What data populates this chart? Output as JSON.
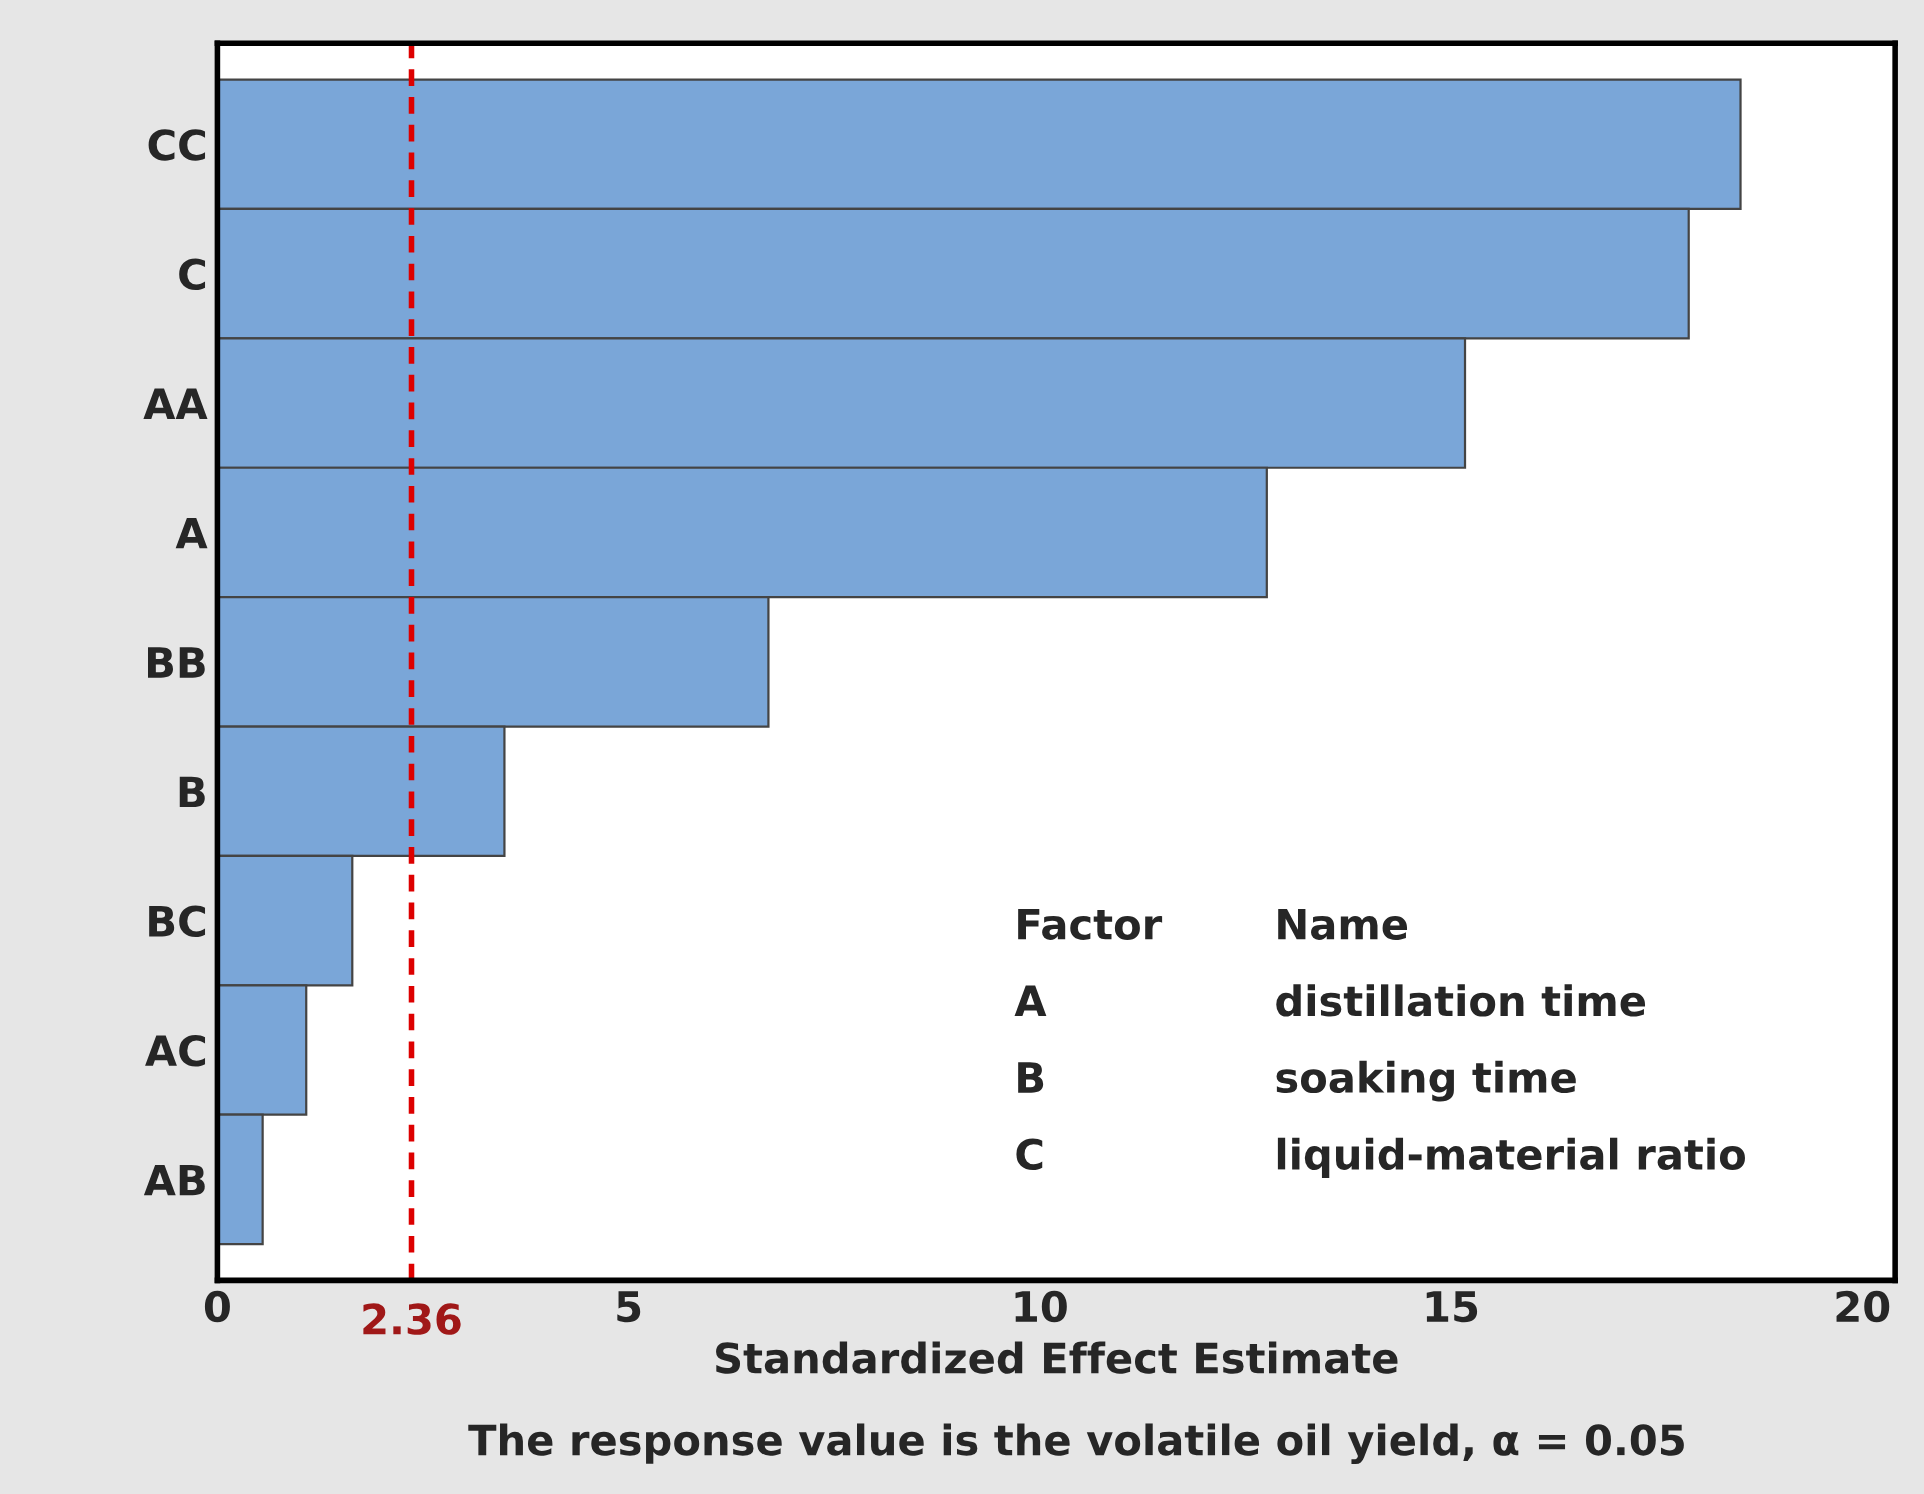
{
  "chart_data": {
    "type": "bar",
    "orientation": "horizontal",
    "categories": [
      "CC",
      "C",
      "AA",
      "A",
      "BB",
      "B",
      "BC",
      "AC",
      "AB"
    ],
    "values": [
      18.52,
      17.89,
      15.17,
      12.76,
      6.7,
      3.49,
      1.64,
      1.08,
      0.55
    ],
    "color": "#7aa6d8",
    "xlim": [
      0,
      20.4
    ],
    "xticks": [
      0,
      5,
      10,
      15,
      20
    ],
    "xlabel": "Standardized Effect Estimate",
    "ref_lines": [
      {
        "axis": "x",
        "value": 2.36,
        "label": "2.36",
        "color": "#dd0000",
        "line_style": "dashed"
      }
    ],
    "annotations": [
      "Factor",
      "Name",
      "A",
      "distillation time",
      "B",
      "soaking time",
      "C",
      "liquid-material ratio",
      "The response value is the volatile oil yield, α = 0.05"
    ],
    "grid": false,
    "legend": false
  }
}
